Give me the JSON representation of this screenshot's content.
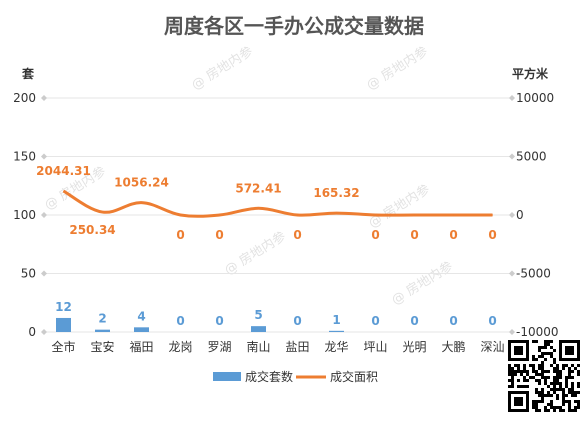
{
  "chart_data": {
    "type": "bar",
    "title": "周度各区一手办公成交量数据",
    "y_left_unit": "套",
    "y_right_unit": "平方米",
    "categories": [
      "全市",
      "宝安",
      "福田",
      "龙岗",
      "罗湖",
      "南山",
      "盐田",
      "龙华",
      "坪山",
      "光明",
      "大鹏",
      "深汕"
    ],
    "ylim_left": [
      0,
      200
    ],
    "yticks_left": [
      0,
      50,
      100,
      150,
      200
    ],
    "ylim_right": [
      -10000,
      10000
    ],
    "yticks_right": [
      -10000,
      -5000,
      0,
      5000,
      10000
    ],
    "series": [
      {
        "name": "成交套数",
        "kind": "bar",
        "axis": "left",
        "color": "#5B9BD5",
        "values": [
          12,
          2,
          4,
          0,
          0,
          5,
          0,
          1,
          0,
          0,
          0,
          0
        ]
      },
      {
        "name": "成交面积",
        "kind": "line",
        "axis": "right",
        "color": "#ED7D31",
        "values": [
          2044.31,
          250.34,
          1056.24,
          0,
          0,
          572.41,
          0,
          165.32,
          0,
          0,
          0,
          0
        ]
      }
    ],
    "bar_labels": [
      "12",
      "2",
      "4",
      "0",
      "0",
      "5",
      "0",
      "1",
      "0",
      "0",
      "0",
      "0"
    ],
    "line_labels": [
      "2044.31",
      "250.34",
      "1056.24",
      "0",
      "0",
      "572.41",
      "0",
      "165.32",
      "0",
      "0",
      "0",
      "0"
    ],
    "grid": true,
    "legend_position": "bottom"
  },
  "watermark": "@ 房地内参",
  "colors": {
    "bar": "#5B9BD5",
    "line": "#ED7D31",
    "grid": "#E6E6E6"
  }
}
